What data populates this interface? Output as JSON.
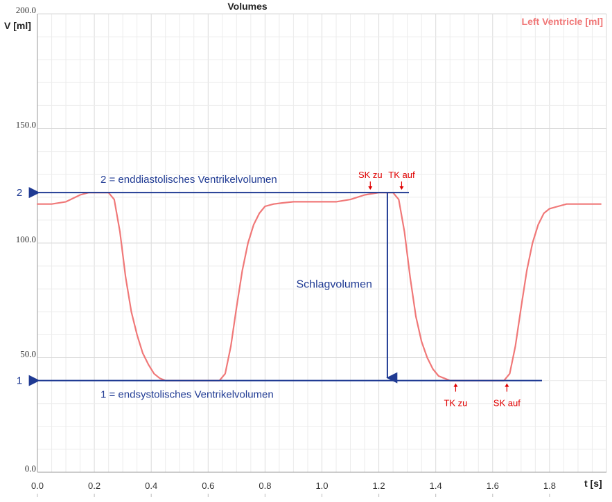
{
  "chart_data": {
    "type": "line",
    "title": "Volumes",
    "ylabel": "V [ml]",
    "xlabel": "t [s]",
    "xlim": [
      0,
      2.0
    ],
    "ylim": [
      0,
      200
    ],
    "x_ticks": [
      "0.0",
      "0.2",
      "0.4",
      "0.6",
      "0.8",
      "1.0",
      "1.2",
      "1.4",
      "1.6",
      "1.8"
    ],
    "y_ticks": [
      "0.0",
      "50.0",
      "100.0",
      "150.0",
      "200.0"
    ],
    "grid": true,
    "series": [
      {
        "name": "Left Ventricle [ml]",
        "color": "#f07878",
        "x": [
          0.0,
          0.05,
          0.1,
          0.15,
          0.18,
          0.2,
          0.25,
          0.27,
          0.29,
          0.31,
          0.33,
          0.35,
          0.37,
          0.39,
          0.41,
          0.43,
          0.45,
          0.5,
          0.55,
          0.6,
          0.64,
          0.66,
          0.68,
          0.7,
          0.72,
          0.74,
          0.76,
          0.78,
          0.8,
          0.83,
          0.86,
          0.9,
          0.95,
          1.0,
          1.05,
          1.1,
          1.15,
          1.2,
          1.25,
          1.27,
          1.29,
          1.31,
          1.33,
          1.35,
          1.37,
          1.39,
          1.41,
          1.43,
          1.45,
          1.5,
          1.55,
          1.6,
          1.64,
          1.66,
          1.68,
          1.7,
          1.72,
          1.74,
          1.76,
          1.78,
          1.8,
          1.83,
          1.86,
          1.9,
          1.95,
          1.98
        ],
        "y": [
          117,
          117,
          118,
          121,
          122,
          122,
          122,
          119,
          105,
          85,
          70,
          60,
          52,
          47,
          43,
          41,
          40,
          40,
          40,
          40,
          40,
          43,
          55,
          72,
          88,
          100,
          108,
          113,
          116,
          117,
          117.5,
          118,
          118,
          118,
          118,
          119,
          121,
          122,
          122,
          119,
          105,
          85,
          68,
          57,
          50,
          45,
          42,
          41,
          40,
          40,
          40,
          40,
          40,
          43,
          55,
          72,
          88,
          100,
          108,
          113,
          115,
          116,
          117,
          117,
          117,
          117
        ]
      }
    ],
    "annotations": {
      "line2_number": "2",
      "line2_label": "2 = enddiastolisches Ventrikelvolumen",
      "line2_value": 122,
      "line1_number": "1",
      "line1_label": "1 = endsystolisches Ventrikelvolumen",
      "line1_value": 40,
      "stroke_volume_label": "Schlagvolumen",
      "stroke_volume_x": 1.23,
      "sk_zu": "SK zu",
      "sk_zu_x": 1.17,
      "tk_auf": "TK auf",
      "tk_auf_x": 1.28,
      "tk_zu": "TK zu",
      "tk_zu_x": 1.47,
      "sk_auf": "SK auf",
      "sk_auf_x": 1.65,
      "marker_color": "#e00000",
      "line_color": "#1f3a93"
    }
  }
}
